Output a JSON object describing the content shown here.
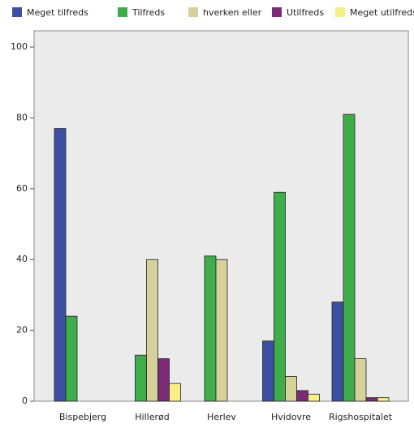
{
  "chart_data": {
    "type": "bar",
    "categories": [
      "Bispebjerg",
      "Hillerød",
      "Herlev",
      "Hvidovre",
      "Rigshospitalet"
    ],
    "series": [
      {
        "name": "Meget tilfreds",
        "color": "#3b4fa3",
        "values": [
          77,
          0,
          0,
          17,
          28
        ]
      },
      {
        "name": "Tilfreds",
        "color": "#3fae4a",
        "values": [
          24,
          13,
          41,
          59,
          81
        ]
      },
      {
        "name": "hverken eller",
        "color": "#d6d09b",
        "values": [
          0,
          40,
          40,
          7,
          12
        ]
      },
      {
        "name": "Utilfreds",
        "color": "#7b2a78",
        "values": [
          0,
          12,
          0,
          3,
          1
        ]
      },
      {
        "name": "Meget utilfreds",
        "color": "#f6ee86",
        "values": [
          0,
          5,
          0,
          2,
          1
        ]
      }
    ],
    "ylim": [
      0,
      104.6
    ],
    "yticks": [
      0,
      20,
      40,
      60,
      80,
      100
    ]
  }
}
